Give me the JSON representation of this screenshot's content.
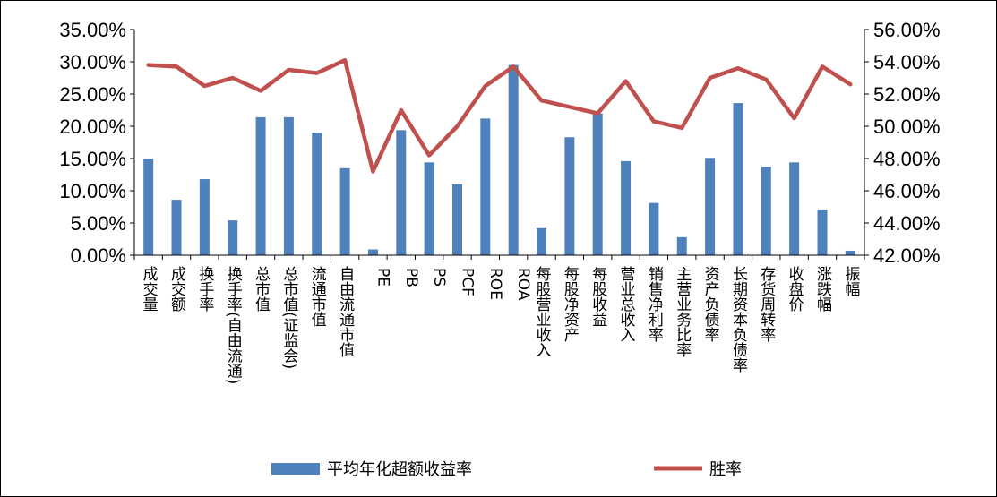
{
  "chart_data": {
    "type": "bar+line",
    "categories": [
      "成交量",
      "成交额",
      "换手率",
      "换手率(自由流通)",
      "总市值",
      "总市值(证监会)",
      "流通市值",
      "自由流通市值",
      "PE",
      "PB",
      "PS",
      "PCF",
      "ROE",
      "ROA",
      "每股营业收入",
      "每股净资产",
      "每股收益",
      "营业总收入",
      "销售净利率",
      "主营业务比率",
      "资产负债率",
      "长期资本负债率",
      "存货周转率",
      "收盘价",
      "涨跌幅",
      "振幅"
    ],
    "series": [
      {
        "name": "平均年化超额收益率",
        "type": "bar",
        "axis": "left",
        "color": "#4f81bd",
        "values": [
          0.15,
          0.086,
          0.118,
          0.054,
          0.214,
          0.214,
          0.19,
          0.135,
          0.009,
          0.194,
          0.144,
          0.11,
          0.212,
          0.295,
          0.042,
          0.183,
          0.22,
          0.146,
          0.081,
          0.028,
          0.151,
          0.236,
          0.137,
          0.144,
          0.071,
          0.007
        ]
      },
      {
        "name": "胜率",
        "type": "line",
        "axis": "right",
        "color": "#c0504d",
        "values": [
          0.538,
          0.537,
          0.525,
          0.53,
          0.522,
          0.535,
          0.533,
          0.541,
          0.472,
          0.51,
          0.482,
          0.5,
          0.525,
          0.537,
          0.516,
          0.512,
          0.508,
          0.528,
          0.503,
          0.499,
          0.53,
          0.536,
          0.529,
          0.505,
          0.537,
          0.526
        ]
      }
    ],
    "y_left": {
      "ylim": [
        0,
        0.35
      ],
      "ticks": [
        "0.00%",
        "5.00%",
        "10.00%",
        "15.00%",
        "20.00%",
        "25.00%",
        "30.00%",
        "35.00%"
      ]
    },
    "y_right": {
      "ylim": [
        0.42,
        0.56
      ],
      "ticks": [
        "42.00%",
        "44.00%",
        "46.00%",
        "48.00%",
        "50.00%",
        "52.00%",
        "54.00%",
        "56.00%"
      ]
    },
    "grid": false,
    "legend": {
      "position": "bottom",
      "labels": [
        "平均年化超额收益率",
        "胜率"
      ]
    }
  }
}
